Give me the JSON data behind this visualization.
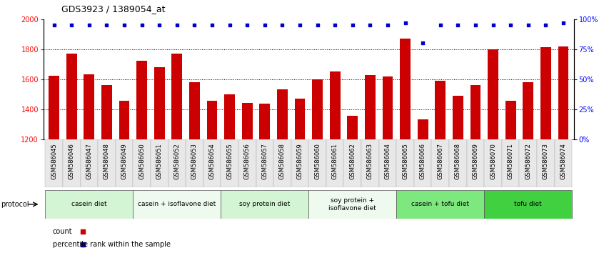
{
  "title": "GDS3923 / 1389054_at",
  "samples": [
    "GSM586045",
    "GSM586046",
    "GSM586047",
    "GSM586048",
    "GSM586049",
    "GSM586050",
    "GSM586051",
    "GSM586052",
    "GSM586053",
    "GSM586054",
    "GSM586055",
    "GSM586056",
    "GSM586057",
    "GSM586058",
    "GSM586059",
    "GSM586060",
    "GSM586061",
    "GSM586062",
    "GSM586063",
    "GSM586064",
    "GSM586065",
    "GSM586066",
    "GSM586067",
    "GSM586068",
    "GSM586069",
    "GSM586070",
    "GSM586071",
    "GSM586072",
    "GSM586073",
    "GSM586074"
  ],
  "counts": [
    1620,
    1770,
    1630,
    1560,
    1455,
    1720,
    1680,
    1770,
    1580,
    1455,
    1500,
    1440,
    1435,
    1530,
    1470,
    1600,
    1650,
    1355,
    1625,
    1615,
    1870,
    1330,
    1590,
    1490,
    1560,
    1800,
    1455,
    1580,
    1810,
    1815
  ],
  "percentile_ranks": [
    95,
    95,
    95,
    95,
    95,
    95,
    95,
    95,
    95,
    95,
    95,
    95,
    95,
    95,
    95,
    95,
    95,
    95,
    95,
    95,
    97,
    80,
    95,
    95,
    95,
    95,
    95,
    95,
    95,
    97
  ],
  "groups": [
    {
      "label": "casein diet",
      "start": 0,
      "end": 5,
      "color": "#d4f5d4"
    },
    {
      "label": "casein + isoflavone diet",
      "start": 5,
      "end": 10,
      "color": "#edfaed"
    },
    {
      "label": "soy protein diet",
      "start": 10,
      "end": 15,
      "color": "#d4f5d4"
    },
    {
      "label": "soy protein +\nisoflavone diet",
      "start": 15,
      "end": 20,
      "color": "#edfaed"
    },
    {
      "label": "casein + tofu diet",
      "start": 20,
      "end": 25,
      "color": "#7de87d"
    },
    {
      "label": "tofu diet",
      "start": 25,
      "end": 30,
      "color": "#40d040"
    }
  ],
  "bar_color": "#cc0000",
  "dot_color": "#0000cc",
  "ylim_left": [
    1200,
    2000
  ],
  "ylim_right": [
    0,
    100
  ],
  "yticks_left": [
    1200,
    1400,
    1600,
    1800,
    2000
  ],
  "yticks_right": [
    0,
    25,
    50,
    75,
    100
  ],
  "grid_values": [
    1400,
    1600,
    1800
  ],
  "bar_width": 0.6,
  "bg_color": "#ffffff",
  "plot_bg": "#ffffff",
  "title_fontsize": 9,
  "tick_fontsize": 6,
  "label_fontsize": 7
}
